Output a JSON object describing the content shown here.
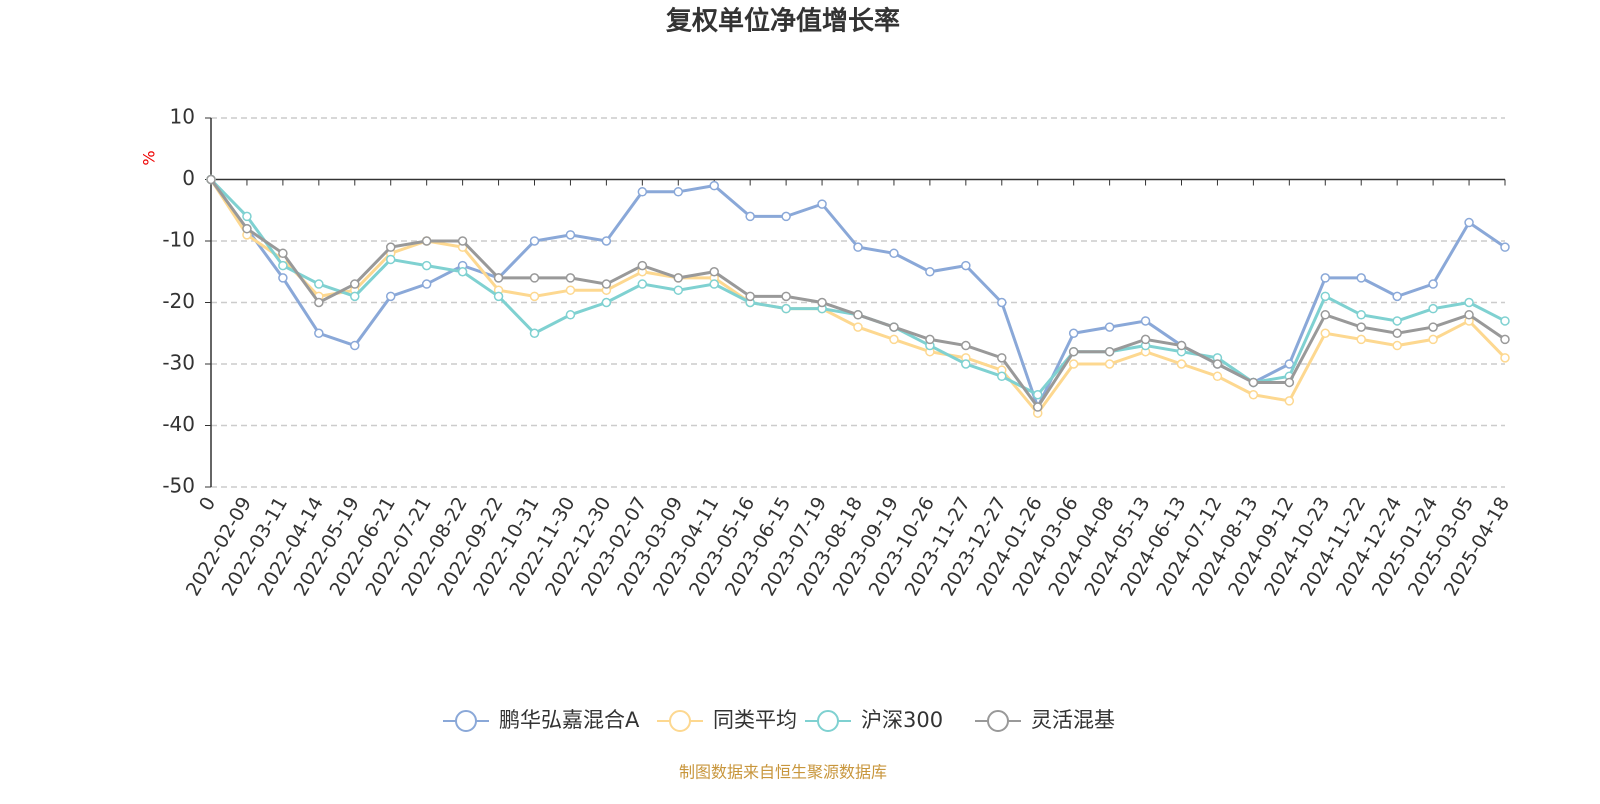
{
  "chart_data": {
    "type": "line",
    "title": "复权单位净值增长率",
    "y_unit": "%",
    "footer": "制图数据来自恒生聚源数据库",
    "categories": [
      "0",
      "2022-02-09",
      "2022-03-11",
      "2022-04-14",
      "2022-05-19",
      "2022-06-21",
      "2022-07-21",
      "2022-08-22",
      "2022-09-22",
      "2022-10-31",
      "2022-11-30",
      "2022-12-30",
      "2023-02-07",
      "2023-03-09",
      "2023-04-11",
      "2023-05-16",
      "2023-06-15",
      "2023-07-19",
      "2023-08-18",
      "2023-09-19",
      "2023-10-26",
      "2023-11-27",
      "2023-12-27",
      "2024-01-26",
      "2024-03-06",
      "2024-04-08",
      "2024-05-13",
      "2024-06-13",
      "2024-07-12",
      "2024-08-13",
      "2024-09-12",
      "2024-10-23",
      "2024-11-22",
      "2024-12-24",
      "2025-01-24",
      "2025-03-05",
      "2025-04-18"
    ],
    "series": [
      {
        "name": "鹏华弘嘉混合A",
        "color": "#8aa8d8",
        "values": [
          0,
          -8,
          -16,
          -25,
          -27,
          -19,
          -17,
          -14,
          -16,
          -10,
          -9,
          -10,
          -2,
          -2,
          -1,
          -6,
          -6,
          -4,
          -11,
          -12,
          -15,
          -14,
          -20,
          -37,
          -25,
          -24,
          -23,
          -27,
          -30,
          -33,
          -30,
          -16,
          -16,
          -19,
          -17,
          -7,
          -11
        ]
      },
      {
        "name": "同类平均",
        "color": "#fdd890",
        "values": [
          0,
          -9,
          -13,
          -19,
          -18,
          -12,
          -10,
          -11,
          -18,
          -19,
          -18,
          -18,
          -15,
          -16,
          -16,
          -20,
          -21,
          -21,
          -24,
          -26,
          -28,
          -29,
          -31,
          -38,
          -30,
          -30,
          -28,
          -30,
          -32,
          -35,
          -36,
          -25,
          -26,
          -27,
          -26,
          -23,
          -29
        ]
      },
      {
        "name": "沪深300",
        "color": "#7fd1d1",
        "values": [
          0,
          -6,
          -14,
          -17,
          -19,
          -13,
          -14,
          -15,
          -19,
          -25,
          -22,
          -20,
          -17,
          -18,
          -17,
          -20,
          -21,
          -21,
          -22,
          -24,
          -27,
          -30,
          -32,
          -35,
          -28,
          -28,
          -27,
          -28,
          -29,
          -33,
          -32,
          -19,
          -22,
          -23,
          -21,
          -20,
          -23
        ]
      },
      {
        "name": "灵活混基",
        "color": "#999999",
        "values": [
          0,
          -8,
          -12,
          -20,
          -17,
          -11,
          -10,
          -10,
          -16,
          -16,
          -16,
          -17,
          -14,
          -16,
          -15,
          -19,
          -19,
          -20,
          -22,
          -24,
          -26,
          -27,
          -29,
          -37,
          -28,
          -28,
          -26,
          -27,
          -30,
          -33,
          -33,
          -22,
          -24,
          -25,
          -24,
          -22,
          -26
        ]
      }
    ],
    "ylim": [
      -50,
      10
    ],
    "yticks": [
      -50,
      -40,
      -30,
      -20,
      -10,
      0,
      10
    ],
    "grid": true,
    "legend": "bottom"
  }
}
